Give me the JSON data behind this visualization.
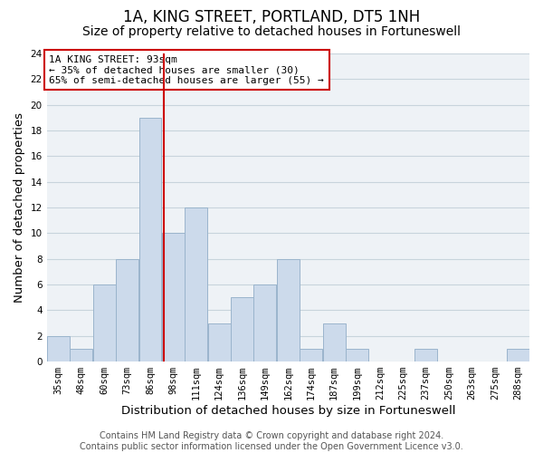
{
  "title": "1A, KING STREET, PORTLAND, DT5 1NH",
  "subtitle": "Size of property relative to detached houses in Fortuneswell",
  "xlabel": "Distribution of detached houses by size in Fortuneswell",
  "ylabel": "Number of detached properties",
  "bin_labels": [
    "35sqm",
    "48sqm",
    "60sqm",
    "73sqm",
    "86sqm",
    "98sqm",
    "111sqm",
    "124sqm",
    "136sqm",
    "149sqm",
    "162sqm",
    "174sqm",
    "187sqm",
    "199sqm",
    "212sqm",
    "225sqm",
    "237sqm",
    "250sqm",
    "263sqm",
    "275sqm",
    "288sqm"
  ],
  "counts": [
    2,
    1,
    6,
    8,
    19,
    10,
    12,
    3,
    5,
    6,
    8,
    1,
    3,
    1,
    0,
    0,
    1,
    0,
    0,
    0,
    1
  ],
  "bar_color": "#ccdaeb",
  "bar_edge_color": "#9ab4cc",
  "grid_color": "#c8d4dc",
  "bg_color": "#eef2f6",
  "marker_value_bin": 4,
  "marker_color": "#cc0000",
  "annotation_title": "1A KING STREET: 93sqm",
  "annotation_line1": "← 35% of detached houses are smaller (30)",
  "annotation_line2": "65% of semi-detached houses are larger (55) →",
  "annotation_box_color": "#ffffff",
  "annotation_border_color": "#cc0000",
  "ylim": [
    0,
    24
  ],
  "yticks": [
    0,
    2,
    4,
    6,
    8,
    10,
    12,
    14,
    16,
    18,
    20,
    22,
    24
  ],
  "footer_line1": "Contains HM Land Registry data © Crown copyright and database right 2024.",
  "footer_line2": "Contains public sector information licensed under the Open Government Licence v3.0.",
  "title_fontsize": 12,
  "subtitle_fontsize": 10,
  "axis_label_fontsize": 9.5,
  "tick_fontsize": 7.5,
  "footer_fontsize": 7
}
